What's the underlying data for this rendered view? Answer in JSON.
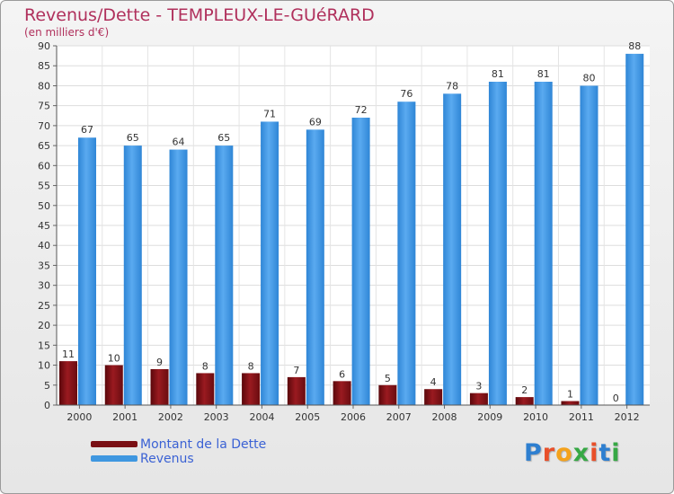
{
  "chart_data": {
    "type": "bar",
    "title": "Revenus/Dette - TEMPLEUX-LE-GUéRARD",
    "subtitle": "(en milliers d'€)",
    "categories": [
      "2000",
      "2001",
      "2002",
      "2003",
      "2004",
      "2005",
      "2006",
      "2007",
      "2008",
      "2009",
      "2010",
      "2011",
      "2012"
    ],
    "series": [
      {
        "name": "Montant de la Dette",
        "color": "#7a0f14",
        "values": [
          11,
          10,
          9,
          8,
          8,
          7,
          6,
          5,
          4,
          3,
          2,
          1,
          0
        ]
      },
      {
        "name": "Revenus",
        "color": "#3f97e0",
        "values": [
          67,
          65,
          64,
          65,
          71,
          69,
          72,
          76,
          78,
          81,
          81,
          80,
          88
        ]
      }
    ],
    "ylim": [
      0,
      90
    ],
    "yticks": [
      0,
      5,
      10,
      15,
      20,
      25,
      30,
      35,
      40,
      45,
      50,
      55,
      60,
      65,
      70,
      75,
      80,
      85,
      90
    ],
    "grid": true,
    "legend_position": "bottom-left"
  },
  "branding": {
    "logo": "Proxiti"
  }
}
